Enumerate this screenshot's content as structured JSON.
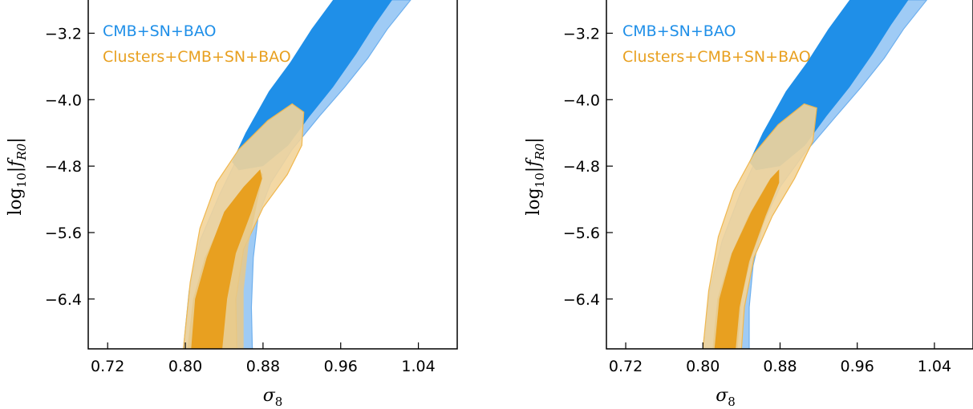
{
  "chart_data": [
    {
      "type": "contour",
      "panel": "left",
      "xlabel": "σ8",
      "ylabel": "log10|fR0|",
      "xlim": [
        0.7,
        1.08
      ],
      "ylim": [
        -7.0,
        -2.8
      ],
      "xticks": [
        0.72,
        0.8,
        0.88,
        0.96,
        1.04
      ],
      "yticks": [
        -3.2,
        -4.0,
        -4.8,
        -5.6,
        -6.4
      ],
      "xtick_labels": [
        "0.72",
        "0.80",
        "0.88",
        "0.96",
        "1.04"
      ],
      "ytick_labels": [
        "−3.2",
        "−4.0",
        "−4.8",
        "−5.6",
        "−6.4"
      ],
      "legend_location": "top-left",
      "series": [
        {
          "name": "CMB+SN+BAO",
          "color": "#1f8fe8",
          "color_outer": "#9fcbf5",
          "contour_95": [
            [
              0.798,
              -7.0
            ],
            [
              0.804,
              -6.3
            ],
            [
              0.815,
              -5.7
            ],
            [
              0.835,
              -5.15
            ],
            [
              0.86,
              -4.55
            ],
            [
              0.893,
              -4.0
            ],
            [
              0.92,
              -3.55
            ],
            [
              0.945,
              -3.2
            ],
            [
              0.968,
              -2.8
            ],
            [
              1.032,
              -2.8
            ],
            [
              1.008,
              -3.15
            ],
            [
              0.988,
              -3.5
            ],
            [
              0.964,
              -3.85
            ],
            [
              0.938,
              -4.2
            ],
            [
              0.91,
              -4.6
            ],
            [
              0.888,
              -5.0
            ],
            [
              0.875,
              -5.4
            ],
            [
              0.87,
              -5.9
            ],
            [
              0.868,
              -6.5
            ],
            [
              0.869,
              -7.0
            ]
          ],
          "contour_68": [
            [
              0.952,
              -2.8
            ],
            [
              0.93,
              -3.15
            ],
            [
              0.908,
              -3.55
            ],
            [
              0.886,
              -3.9
            ],
            [
              0.862,
              -4.4
            ],
            [
              0.848,
              -4.75
            ],
            [
              0.855,
              -4.85
            ],
            [
              0.88,
              -4.8
            ],
            [
              0.906,
              -4.55
            ],
            [
              0.928,
              -4.2
            ],
            [
              0.952,
              -3.85
            ],
            [
              0.976,
              -3.45
            ],
            [
              0.995,
              -3.1
            ],
            [
              1.013,
              -2.8
            ]
          ]
        },
        {
          "name": "Clusters+CMB+SN+BAO",
          "color": "#e8a020",
          "color_outer": "#f2d49a",
          "contour_95": [
            [
              0.798,
              -7.0
            ],
            [
              0.805,
              -6.2
            ],
            [
              0.815,
              -5.55
            ],
            [
              0.832,
              -5.0
            ],
            [
              0.855,
              -4.6
            ],
            [
              0.885,
              -4.25
            ],
            [
              0.91,
              -4.05
            ],
            [
              0.922,
              -4.15
            ],
            [
              0.92,
              -4.55
            ],
            [
              0.905,
              -4.9
            ],
            [
              0.88,
              -5.3
            ],
            [
              0.86,
              -5.8
            ],
            [
              0.852,
              -6.4
            ],
            [
              0.853,
              -7.0
            ]
          ],
          "contour_68": [
            [
              0.802,
              -7.0
            ],
            [
              0.808,
              -6.4
            ],
            [
              0.82,
              -5.9
            ],
            [
              0.84,
              -5.4
            ],
            [
              0.86,
              -5.1
            ],
            [
              0.877,
              -4.86
            ],
            [
              0.88,
              -4.9
            ],
            [
              0.873,
              -5.3
            ],
            [
              0.865,
              -5.75
            ],
            [
              0.86,
              -6.3
            ],
            [
              0.86,
              -7.0
            ]
          ],
          "contour_68_core": [
            [
              0.806,
              -7.0
            ],
            [
              0.81,
              -6.4
            ],
            [
              0.822,
              -5.9
            ],
            [
              0.84,
              -5.35
            ],
            [
              0.86,
              -5.05
            ],
            [
              0.877,
              -4.84
            ],
            [
              0.879,
              -4.95
            ],
            [
              0.868,
              -5.35
            ],
            [
              0.852,
              -5.85
            ],
            [
              0.843,
              -6.4
            ],
            [
              0.838,
              -7.0
            ]
          ]
        }
      ]
    },
    {
      "type": "contour",
      "panel": "right",
      "xlabel": "σ8",
      "ylabel": "log10|fR0|",
      "xlim": [
        0.7,
        1.08
      ],
      "ylim": [
        -7.0,
        -2.8
      ],
      "xticks": [
        0.72,
        0.8,
        0.88,
        0.96,
        1.04
      ],
      "yticks": [
        -3.2,
        -4.0,
        -4.8,
        -5.6,
        -6.4
      ],
      "xtick_labels": [
        "0.72",
        "0.80",
        "0.88",
        "0.96",
        "1.04"
      ],
      "ytick_labels": [
        "−3.2",
        "−4.0",
        "−4.8",
        "−5.6",
        "−6.4"
      ],
      "legend_location": "top-left",
      "series": [
        {
          "name": "CMB+SN+BAO",
          "color": "#1f8fe8",
          "color_outer": "#9fcbf5",
          "contour_95": [
            [
              0.8,
              -7.0
            ],
            [
              0.807,
              -6.3
            ],
            [
              0.82,
              -5.7
            ],
            [
              0.838,
              -5.15
            ],
            [
              0.862,
              -4.55
            ],
            [
              0.893,
              -4.0
            ],
            [
              0.92,
              -3.55
            ],
            [
              0.945,
              -3.2
            ],
            [
              0.968,
              -2.8
            ],
            [
              1.032,
              -2.8
            ],
            [
              1.008,
              -3.15
            ],
            [
              0.988,
              -3.5
            ],
            [
              0.964,
              -3.85
            ],
            [
              0.938,
              -4.2
            ],
            [
              0.905,
              -4.65
            ],
            [
              0.88,
              -5.05
            ],
            [
              0.862,
              -5.5
            ],
            [
              0.852,
              -6.0
            ],
            [
              0.848,
              -6.5
            ],
            [
              0.848,
              -7.0
            ]
          ],
          "contour_68": [
            [
              0.952,
              -2.8
            ],
            [
              0.93,
              -3.15
            ],
            [
              0.908,
              -3.55
            ],
            [
              0.886,
              -3.9
            ],
            [
              0.862,
              -4.4
            ],
            [
              0.848,
              -4.75
            ],
            [
              0.855,
              -4.85
            ],
            [
              0.88,
              -4.8
            ],
            [
              0.906,
              -4.55
            ],
            [
              0.928,
              -4.2
            ],
            [
              0.952,
              -3.85
            ],
            [
              0.976,
              -3.45
            ],
            [
              0.995,
              -3.1
            ],
            [
              1.013,
              -2.8
            ]
          ]
        },
        {
          "name": "Clusters+CMB+SN+BAO",
          "color": "#e8a020",
          "color_outer": "#f2d49a",
          "contour_95": [
            [
              0.8,
              -7.0
            ],
            [
              0.806,
              -6.3
            ],
            [
              0.816,
              -5.65
            ],
            [
              0.832,
              -5.1
            ],
            [
              0.853,
              -4.65
            ],
            [
              0.878,
              -4.3
            ],
            [
              0.905,
              -4.05
            ],
            [
              0.918,
              -4.1
            ],
            [
              0.914,
              -4.5
            ],
            [
              0.895,
              -4.95
            ],
            [
              0.872,
              -5.4
            ],
            [
              0.853,
              -5.9
            ],
            [
              0.843,
              -6.5
            ],
            [
              0.84,
              -7.0
            ]
          ],
          "contour_68": [
            [
              0.81,
              -7.0
            ],
            [
              0.815,
              -6.4
            ],
            [
              0.828,
              -5.9
            ],
            [
              0.847,
              -5.4
            ],
            [
              0.867,
              -5.0
            ],
            [
              0.878,
              -4.85
            ],
            [
              0.879,
              -5.0
            ],
            [
              0.866,
              -5.4
            ],
            [
              0.85,
              -5.9
            ],
            [
              0.84,
              -6.4
            ],
            [
              0.836,
              -7.0
            ]
          ],
          "contour_68_core": [
            [
              0.812,
              -7.0
            ],
            [
              0.817,
              -6.4
            ],
            [
              0.83,
              -5.85
            ],
            [
              0.85,
              -5.35
            ],
            [
              0.87,
              -4.95
            ],
            [
              0.879,
              -4.84
            ],
            [
              0.879,
              -5.0
            ],
            [
              0.865,
              -5.4
            ],
            [
              0.848,
              -5.95
            ],
            [
              0.838,
              -6.5
            ],
            [
              0.834,
              -7.0
            ]
          ]
        }
      ]
    }
  ]
}
